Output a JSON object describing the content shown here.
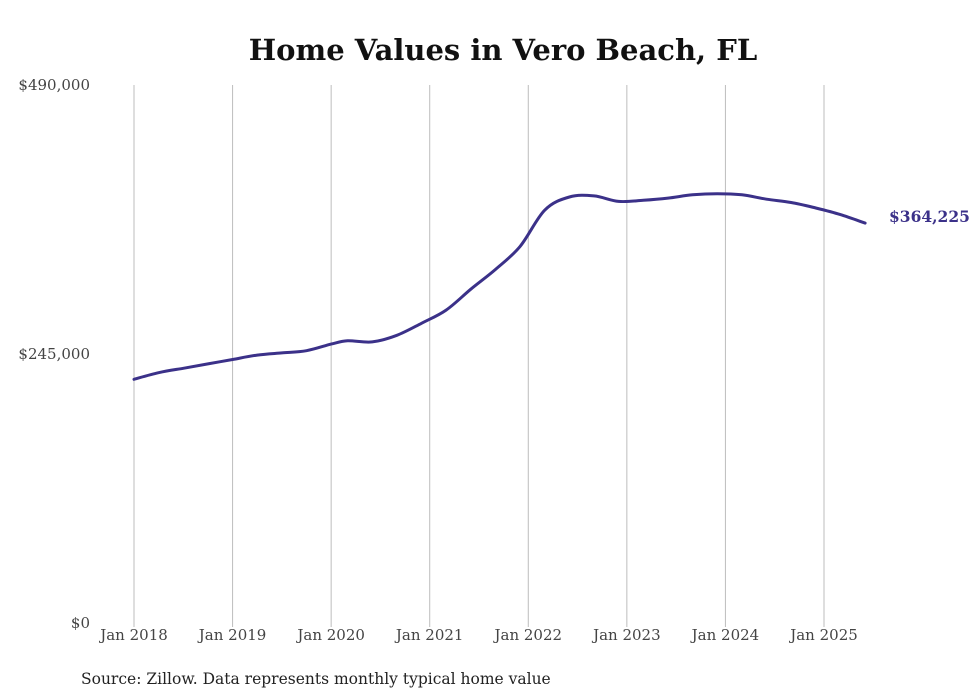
{
  "chart_data": {
    "type": "line",
    "title": "Home Values in Vero Beach, FL",
    "source": "Source: Zillow. Data represents monthly typical home value",
    "y_ticks": [
      {
        "value": 490000,
        "label": "$490,000"
      },
      {
        "value": 245000,
        "label": "$245,000"
      },
      {
        "value": 0,
        "label": "$0"
      }
    ],
    "ylim": [
      0,
      490000
    ],
    "x_ticks": [
      {
        "year": 2018,
        "label": "Jan 2018"
      },
      {
        "year": 2019,
        "label": "Jan 2019"
      },
      {
        "year": 2020,
        "label": "Jan 2020"
      },
      {
        "year": 2021,
        "label": "Jan 2021"
      },
      {
        "year": 2022,
        "label": "Jan 2022"
      },
      {
        "year": 2023,
        "label": "Jan 2023"
      },
      {
        "year": 2024,
        "label": "Jan 2024"
      },
      {
        "year": 2025,
        "label": "Jan 2025"
      }
    ],
    "grid": "vertical",
    "line_color": "#3b3189",
    "end_label": "$364,225",
    "series": [
      {
        "x": [
          "2018-01",
          "2018-04",
          "2018-07",
          "2018-10",
          "2019-01",
          "2019-04",
          "2019-07",
          "2019-10",
          "2020-01",
          "2020-03",
          "2020-06",
          "2020-09",
          "2020-12",
          "2021-03",
          "2021-06",
          "2021-09",
          "2021-12",
          "2022-03",
          "2022-06",
          "2022-09",
          "2022-12",
          "2023-03",
          "2023-06",
          "2023-09",
          "2023-12",
          "2024-03",
          "2024-06",
          "2024-09",
          "2024-12",
          "2025-03",
          "2025-06"
        ],
        "values": [
          222000,
          228000,
          232000,
          236000,
          240000,
          244000,
          246000,
          248000,
          254000,
          257000,
          256000,
          262000,
          273000,
          285000,
          304000,
          322000,
          343000,
          376000,
          388000,
          389000,
          384000,
          385000,
          387000,
          390000,
          391000,
          390000,
          386000,
          383000,
          378000,
          372000,
          364225
        ]
      }
    ]
  }
}
